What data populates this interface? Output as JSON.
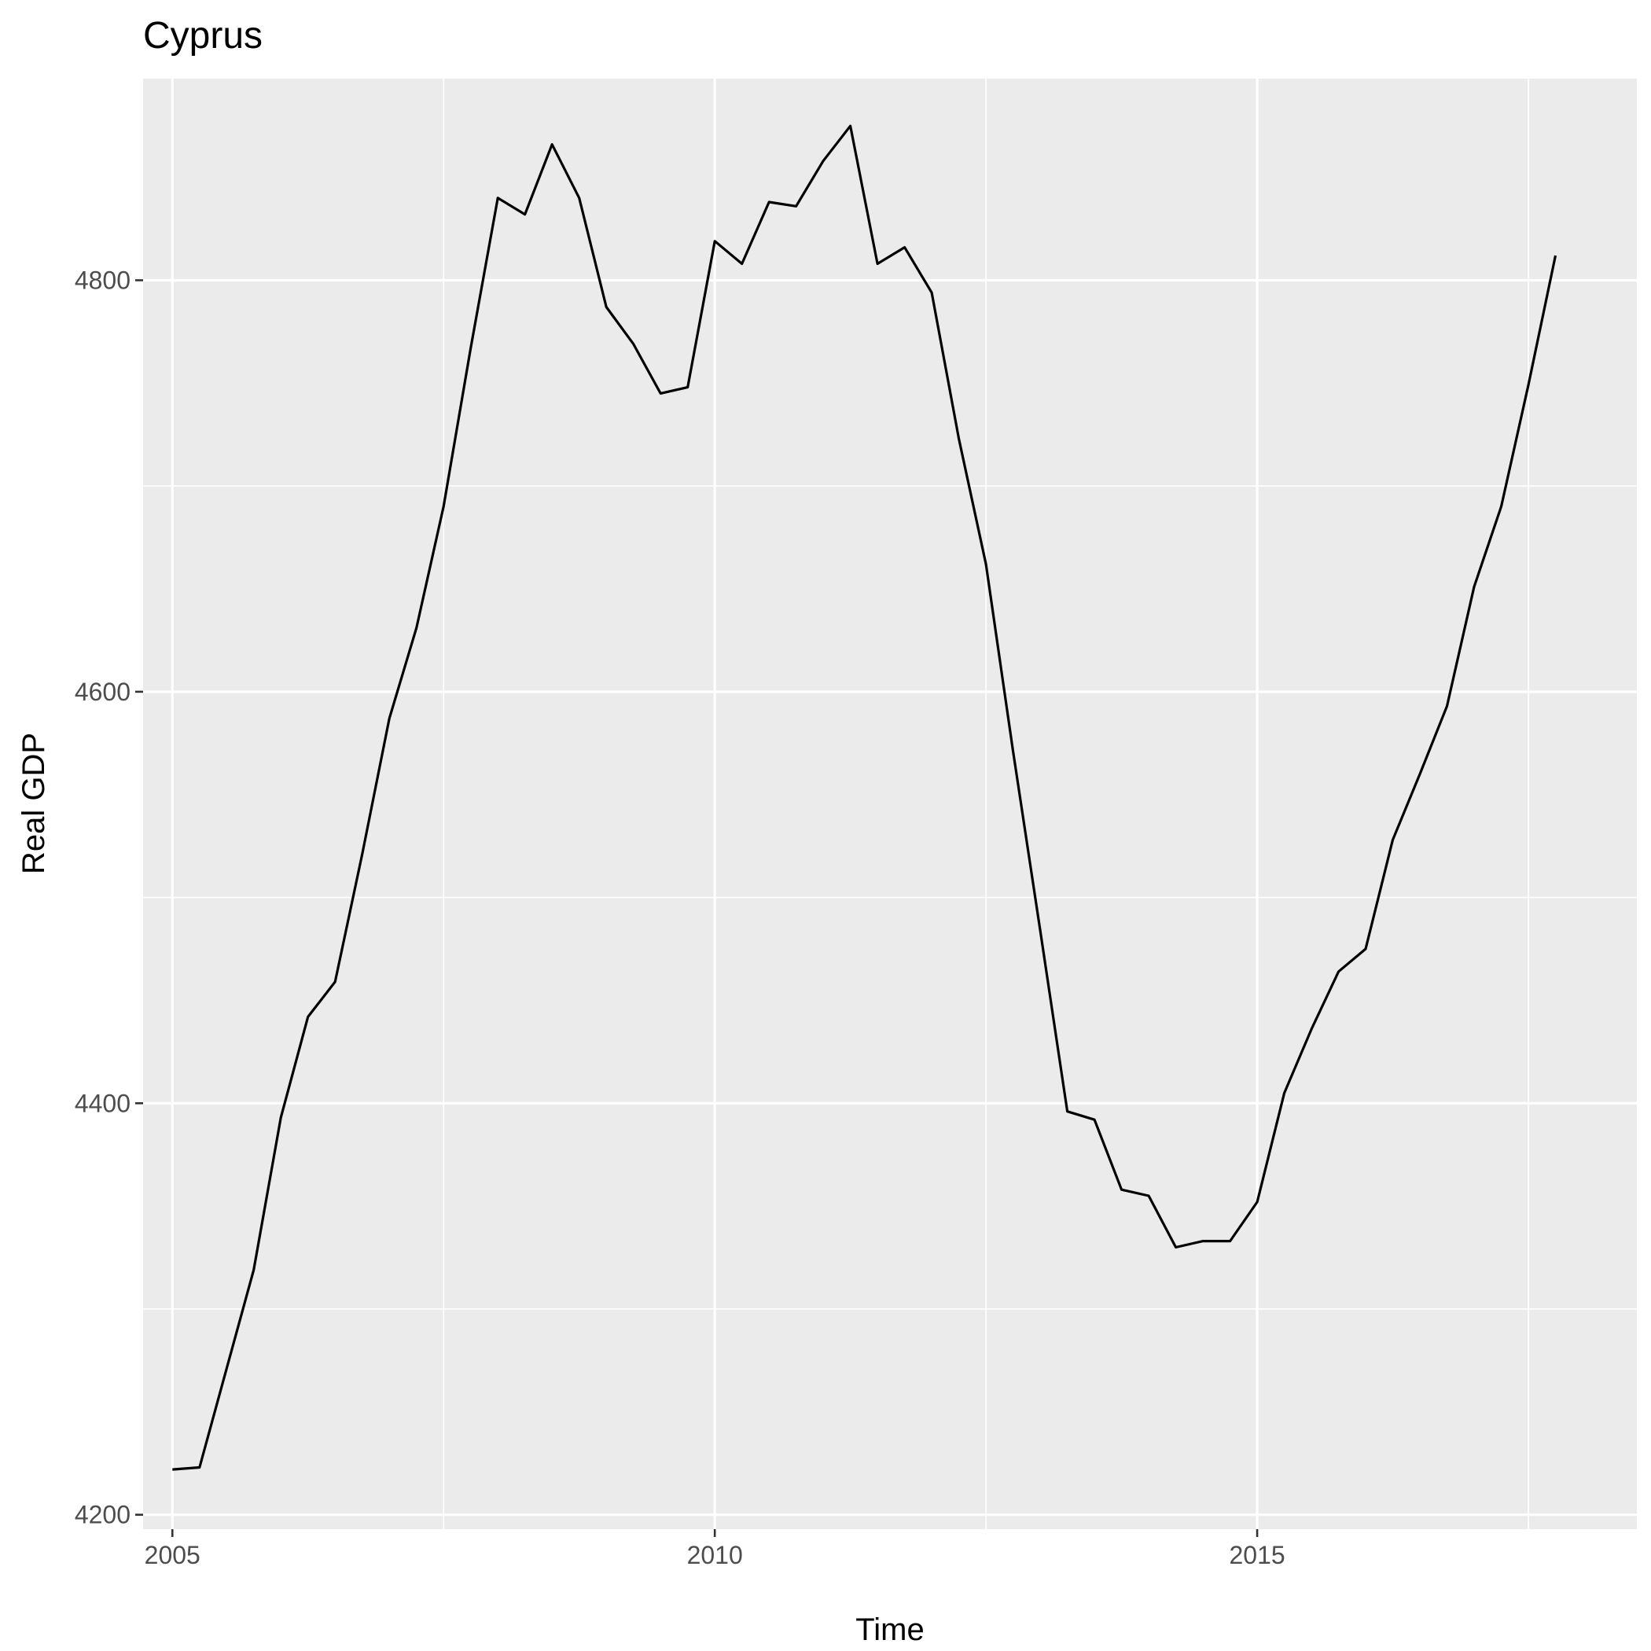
{
  "chart_data": {
    "type": "line",
    "title": "Cyprus",
    "xlabel": "Time",
    "ylabel": "Real GDP",
    "xlim": [
      2004.73,
      2018.5
    ],
    "ylim": [
      4193,
      4898
    ],
    "x_ticks": [
      2005,
      2010,
      2015
    ],
    "x_tick_labels": [
      "2005",
      "2010",
      "2015"
    ],
    "y_ticks": [
      4200,
      4400,
      4600,
      4800
    ],
    "y_tick_labels": [
      "4200",
      "4400",
      "4600",
      "4800"
    ],
    "grid": true,
    "legend": "none",
    "colors": {
      "panel": "#ebebeb",
      "grid": "#ffffff",
      "line": "#000000"
    },
    "x": [
      2005.0,
      2005.25,
      2005.5,
      2005.75,
      2006.0,
      2006.25,
      2006.5,
      2006.75,
      2007.0,
      2007.25,
      2007.5,
      2007.75,
      2008.0,
      2008.25,
      2008.5,
      2008.75,
      2009.0,
      2009.25,
      2009.5,
      2009.75,
      2010.0,
      2010.25,
      2010.5,
      2010.75,
      2011.0,
      2011.25,
      2011.5,
      2011.75,
      2012.0,
      2012.25,
      2012.5,
      2012.75,
      2013.0,
      2013.25,
      2013.5,
      2013.75,
      2014.0,
      2014.25,
      2014.5,
      2014.75,
      2015.0,
      2015.25,
      2015.5,
      2015.75,
      2016.0,
      2016.25,
      2016.5,
      2016.75,
      2017.0,
      2017.25,
      2017.5,
      2017.75
    ],
    "values": [
      4222,
      4223,
      4271,
      4319,
      4393,
      4442,
      4459,
      4521,
      4587,
      4631,
      4690,
      4767,
      4840,
      4832,
      4866,
      4840,
      4787,
      4769,
      4745,
      4748,
      4819,
      4808,
      4838,
      4836,
      4858,
      4875,
      4808,
      4816,
      4794,
      4723,
      4662,
      4571,
      4484,
      4396,
      4392,
      4358,
      4355,
      4330,
      4333,
      4333,
      4352,
      4405,
      4436,
      4464,
      4475,
      4528,
      4560,
      4593,
      4651,
      4690,
      4749,
      4812
    ]
  }
}
